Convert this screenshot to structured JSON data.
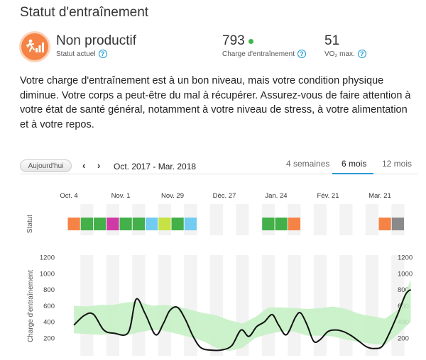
{
  "page": {
    "title": "Statut d'entraînement"
  },
  "status": {
    "value": "Non productif",
    "label": "Statut actuel",
    "icon": "non-productive-status-icon",
    "color": "#f58345"
  },
  "training_load": {
    "value": "793",
    "label": "Charge d'entraînement",
    "indicator_color": "#3fb649"
  },
  "vo2max": {
    "value": "51",
    "label": "VO₂ max."
  },
  "description": "Votre charge d'entraînement est à un bon niveau, mais votre condition physique diminue. Votre corps a peut-être du mal à récupérer. Assurez-vous de faire attention à votre état de santé général, notamment à votre niveau de stress, à votre alimentation et à votre repos.",
  "controls": {
    "today_label": "Aujourd'hui",
    "prev_icon": "chevron-left-icon",
    "next_icon": "chevron-right-icon",
    "date_range": "Oct. 2017 - Mar. 2018",
    "tabs": [
      {
        "label": "4 semaines",
        "active": false
      },
      {
        "label": "6 mois",
        "active": true
      },
      {
        "label": "12 mois",
        "active": false
      }
    ]
  },
  "chart_data": {
    "type": "line",
    "x_labels": [
      "Oct. 4",
      "Nov. 1",
      "Nov. 29",
      "Déc. 27",
      "Jan. 24",
      "Fév. 21",
      "Mar. 21"
    ],
    "status_row_label": "Statut",
    "status_colors": {
      "orange": "#f58345",
      "green": "#43b04a",
      "magenta": "#cf3aa6",
      "cyan": "#72cbf0",
      "yellow_green": "#c6e244",
      "gray": "#8a8a8a"
    },
    "status_weeks": [
      "orange",
      "green",
      "green",
      "magenta",
      "green",
      "green",
      "cyan",
      "yellow_green",
      "green",
      "cyan",
      null,
      null,
      null,
      null,
      null,
      "green",
      "green",
      "orange",
      null,
      null,
      null,
      null,
      null,
      null,
      "orange",
      "gray"
    ],
    "ylabel": "Charge d'entraînement",
    "y_ticks_left": [
      200,
      400,
      600,
      800,
      1000,
      1200
    ],
    "y_ticks_right": [
      200,
      400,
      600,
      800,
      1000,
      1200
    ],
    "ylim": [
      0,
      1250
    ],
    "series": [
      {
        "kind": "line",
        "color": "#111111",
        "x_week": [
          0,
          0.8,
          1.5,
          2.3,
          3.1,
          4.2,
          4.8,
          5.5,
          6.3,
          6.9,
          7.4,
          8,
          8.6,
          9.2,
          9.8,
          10.6,
          11.5,
          12.2,
          12.9,
          13.5,
          14.1,
          14.7,
          15.3,
          15.8,
          16.4,
          17.1,
          17.5,
          18,
          18.5,
          19,
          19.6,
          20.2,
          20.8,
          21.4,
          22,
          22.6,
          23.2,
          23.8,
          24.4,
          25,
          25.6,
          26
        ],
        "values": [
          360,
          480,
          495,
          300,
          260,
          270,
          680,
          500,
          240,
          380,
          540,
          580,
          430,
          220,
          80,
          50,
          55,
          110,
          300,
          220,
          340,
          400,
          490,
          360,
          240,
          460,
          510,
          360,
          160,
          180,
          280,
          300,
          280,
          230,
          160,
          90,
          70,
          100,
          280,
          500,
          740,
          800
        ]
      },
      {
        "kind": "band",
        "color": "#c2f0c2",
        "x_week": [
          0,
          1,
          2,
          3,
          4,
          5,
          6,
          7,
          8,
          9,
          10,
          11,
          12,
          13,
          14,
          15,
          16,
          17,
          18,
          19,
          20,
          21,
          22,
          23,
          24,
          25,
          26
        ],
        "upper": [
          600,
          590,
          610,
          610,
          640,
          650,
          600,
          610,
          590,
          550,
          510,
          480,
          420,
          380,
          460,
          580,
          580,
          570,
          560,
          570,
          590,
          560,
          500,
          470,
          440,
          550,
          920
        ],
        "lower": [
          260,
          250,
          240,
          250,
          230,
          270,
          300,
          290,
          250,
          210,
          160,
          80,
          40,
          80,
          200,
          250,
          280,
          280,
          230,
          230,
          220,
          180,
          150,
          130,
          110,
          250,
          400
        ]
      }
    ]
  }
}
